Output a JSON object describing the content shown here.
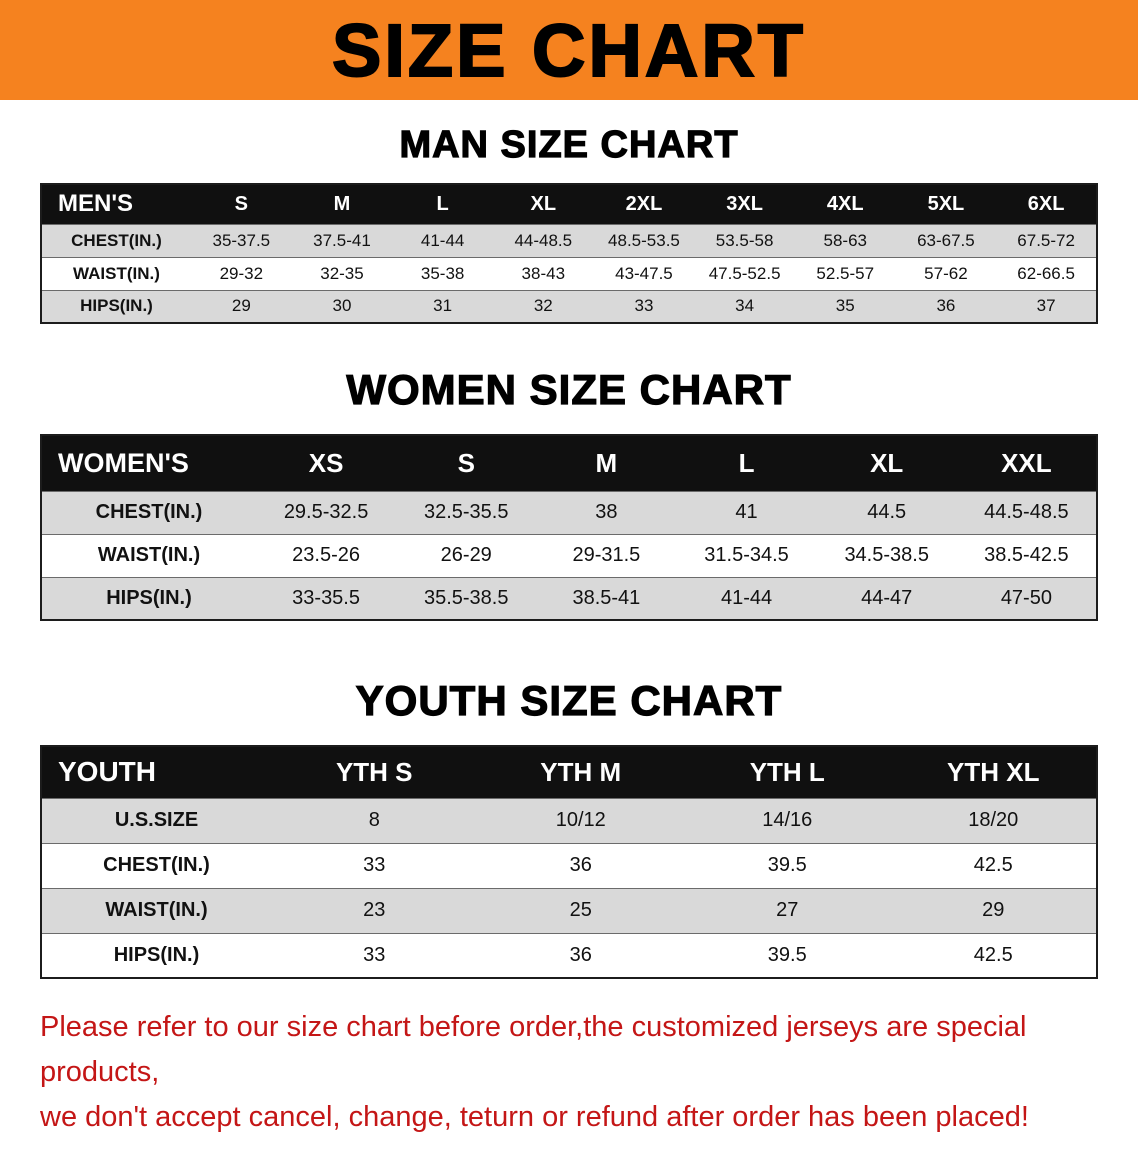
{
  "banner": {
    "title": "SIZE CHART"
  },
  "colors": {
    "banner_bg": "#f5821f",
    "table_header_bg": "#101010",
    "row_stripe": "#d9d9d9",
    "note_text": "#c41616"
  },
  "sections": [
    {
      "heading": "MAN SIZE CHART",
      "table": {
        "header": [
          "MEN'S",
          "S",
          "M",
          "L",
          "XL",
          "2XL",
          "3XL",
          "4XL",
          "5XL",
          "6XL"
        ],
        "rows": [
          [
            "CHEST(IN.)",
            "35-37.5",
            "37.5-41",
            "41-44",
            "44-48.5",
            "48.5-53.5",
            "53.5-58",
            "58-63",
            "63-67.5",
            "67.5-72"
          ],
          [
            "WAIST(IN.)",
            "29-32",
            "32-35",
            "35-38",
            "38-43",
            "43-47.5",
            "47.5-52.5",
            "52.5-57",
            "57-62",
            "62-66.5"
          ],
          [
            "HIPS(IN.)",
            "29",
            "30",
            "31",
            "32",
            "33",
            "34",
            "35",
            "36",
            "37"
          ]
        ]
      }
    },
    {
      "heading": "WOMEN SIZE CHART",
      "table": {
        "header": [
          "WOMEN'S",
          "XS",
          "S",
          "M",
          "L",
          "XL",
          "XXL"
        ],
        "rows": [
          [
            "CHEST(IN.)",
            "29.5-32.5",
            "32.5-35.5",
            "38",
            "41",
            "44.5",
            "44.5-48.5"
          ],
          [
            "WAIST(IN.)",
            "23.5-26",
            "26-29",
            "29-31.5",
            "31.5-34.5",
            "34.5-38.5",
            "38.5-42.5"
          ],
          [
            "HIPS(IN.)",
            "33-35.5",
            "35.5-38.5",
            "38.5-41",
            "41-44",
            "44-47",
            "47-50"
          ]
        ]
      }
    },
    {
      "heading": "YOUTH SIZE CHART",
      "table": {
        "header": [
          "YOUTH",
          "YTH S",
          "YTH M",
          "YTH L",
          "YTH XL"
        ],
        "rows": [
          [
            "U.S.SIZE",
            "8",
            "10/12",
            "14/16",
            "18/20"
          ],
          [
            "CHEST(IN.)",
            "33",
            "36",
            "39.5",
            "42.5"
          ],
          [
            "WAIST(IN.)",
            "23",
            "25",
            "27",
            "29"
          ],
          [
            "HIPS(IN.)",
            "33",
            "36",
            "39.5",
            "42.5"
          ]
        ]
      }
    }
  ],
  "note": {
    "line1": "Please refer to our size chart before order,the customized jerseys are special products,",
    "line2": "we don't accept cancel, change, teturn or refund after order has been placed!"
  }
}
